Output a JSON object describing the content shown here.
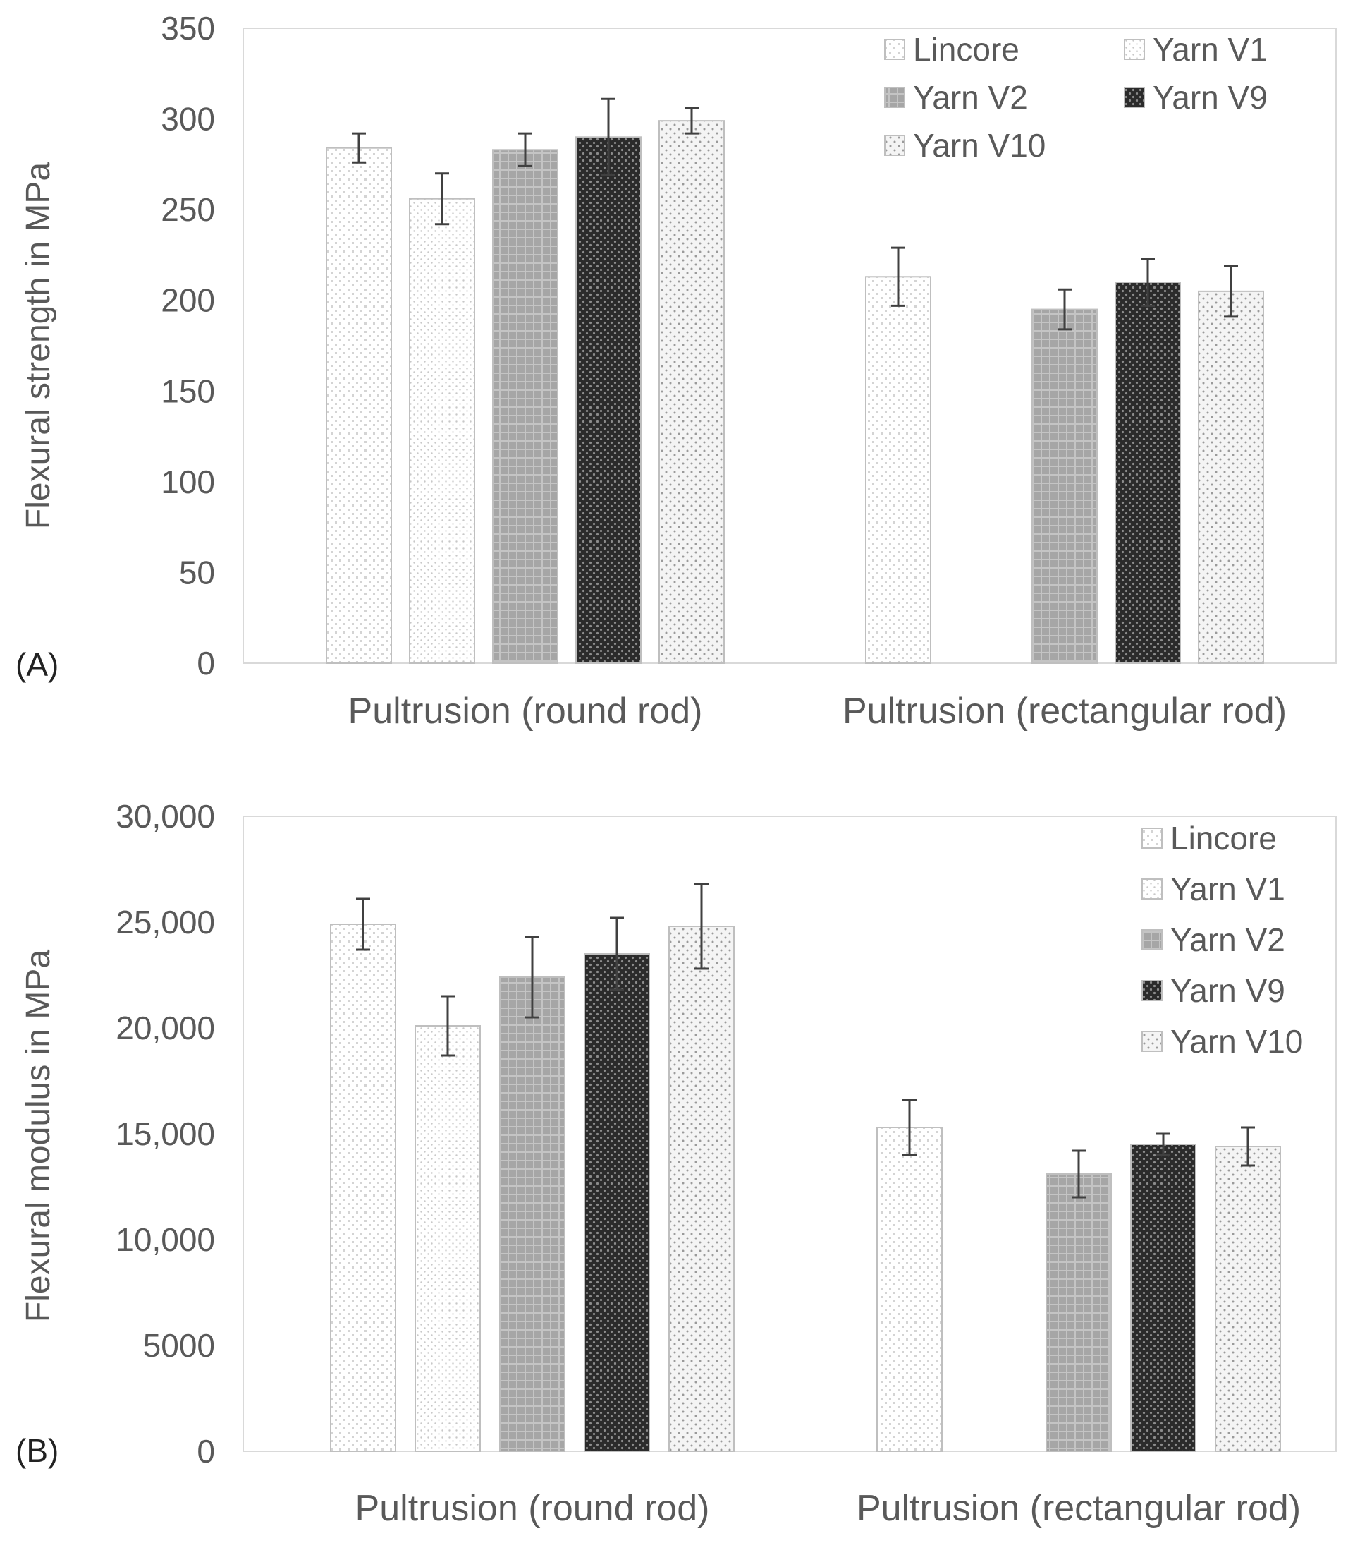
{
  "chart_data": [
    {
      "type": "bar",
      "panel_label": "(A)",
      "ylabel": "Flexural strength in MPa",
      "xlabel": "",
      "ylim": [
        0,
        350
      ],
      "yticks": [
        0,
        50,
        100,
        150,
        200,
        250,
        300,
        350
      ],
      "ytick_labels": [
        "0",
        "50",
        "100",
        "150",
        "200",
        "250",
        "300",
        "350"
      ],
      "grid": false,
      "legend": {
        "position": "top-right",
        "columns": 2
      },
      "categories": [
        "Pultrusion (round rod)",
        "Pultrusion (rectangular rod)"
      ],
      "series": [
        {
          "name": "Lincore",
          "values": [
            284,
            213
          ],
          "errors": [
            8,
            16
          ],
          "pattern": "lincore"
        },
        {
          "name": "Yarn V1",
          "values": [
            256,
            null
          ],
          "errors": [
            14,
            null
          ],
          "pattern": "v1"
        },
        {
          "name": "Yarn V2",
          "values": [
            283,
            195
          ],
          "errors": [
            9,
            11
          ],
          "pattern": "v2"
        },
        {
          "name": "Yarn V9",
          "values": [
            290,
            210
          ],
          "errors": [
            21,
            13
          ],
          "pattern": "v9"
        },
        {
          "name": "Yarn V10",
          "values": [
            299,
            205
          ],
          "errors": [
            7,
            14
          ],
          "pattern": "v10"
        }
      ]
    },
    {
      "type": "bar",
      "panel_label": "(B)",
      "ylabel": "Flexural modulus in MPa",
      "xlabel": "",
      "ylim": [
        0,
        30000
      ],
      "yticks": [
        0,
        5000,
        10000,
        15000,
        20000,
        25000,
        30000
      ],
      "ytick_labels": [
        "0",
        "5000",
        "10,000",
        "15,000",
        "20,000",
        "25,000",
        "30,000"
      ],
      "grid": false,
      "legend": {
        "position": "top-right",
        "columns": 1
      },
      "categories": [
        "Pultrusion (round rod)",
        "Pultrusion (rectangular rod)"
      ],
      "series": [
        {
          "name": "Lincore",
          "values": [
            24900,
            15300
          ],
          "errors": [
            1200,
            1300
          ],
          "pattern": "lincore"
        },
        {
          "name": "Yarn V1",
          "values": [
            20100,
            null
          ],
          "errors": [
            1400,
            null
          ],
          "pattern": "v1"
        },
        {
          "name": "Yarn V2",
          "values": [
            22400,
            13100
          ],
          "errors": [
            1900,
            1100
          ],
          "pattern": "v2"
        },
        {
          "name": "Yarn V9",
          "values": [
            23500,
            14500
          ],
          "errors": [
            1700,
            500
          ],
          "pattern": "v9"
        },
        {
          "name": "Yarn V10",
          "values": [
            24800,
            14400
          ],
          "errors": [
            2000,
            900
          ],
          "pattern": "v10"
        }
      ]
    }
  ],
  "colors": {
    "axis": "#d9d9d9",
    "text": "#595959",
    "error_bar": "#404040",
    "bar_outline": "#bfbfbf"
  }
}
